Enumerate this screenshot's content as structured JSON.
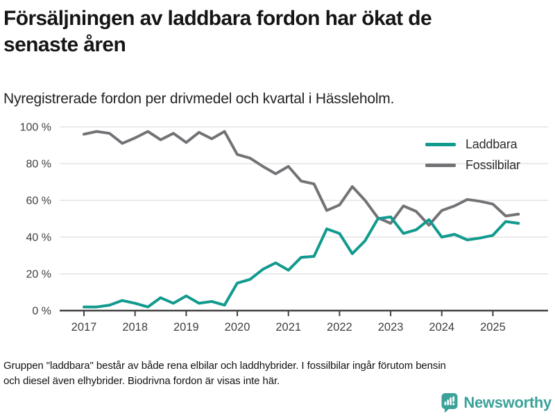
{
  "header": {
    "title_lines": [
      "Försäljningen av laddbara fordon har ökat de",
      "senaste åren"
    ],
    "subtitle": "Nyregistrerade fordon per drivmedel och kvartal i Hässleholm."
  },
  "chart_data": {
    "type": "line",
    "title": "Nyregistrerade fordon per drivmedel och kvartal i Hässleholm",
    "x_unit": "kvartal",
    "categories": [
      "2017 K1",
      "2017 K2",
      "2017 K3",
      "2017 K4",
      "2018 K1",
      "2018 K2",
      "2018 K3",
      "2018 K4",
      "2019 K1",
      "2019 K2",
      "2019 K3",
      "2019 K4",
      "2020 K1",
      "2020 K2",
      "2020 K3",
      "2020 K4",
      "2021 K1",
      "2021 K2",
      "2021 K3",
      "2021 K4",
      "2022 K1",
      "2022 K2",
      "2022 K3",
      "2022 K4",
      "2023 K1",
      "2023 K2",
      "2023 K3",
      "2023 K4",
      "2024 K1",
      "2024 K2",
      "2024 K3",
      "2024 K4",
      "2025 K1",
      "2025 K2",
      "2025 K3"
    ],
    "series": [
      {
        "name": "Laddbara",
        "color": "#119a8e",
        "values": [
          2,
          2,
          3,
          5.5,
          4,
          2,
          7,
          4,
          8,
          4,
          5,
          3,
          15,
          17,
          22.5,
          26,
          22,
          29,
          29.5,
          44.5,
          42,
          31,
          38,
          50,
          51,
          42,
          44,
          49.5,
          40,
          41.5,
          38.5,
          39.5,
          41,
          48.5,
          47.5
        ]
      },
      {
        "name": "Fossilbilar",
        "color": "#737377",
        "values": [
          96,
          97.5,
          96.5,
          91,
          94,
          97.5,
          93,
          96.5,
          91.5,
          97,
          93.5,
          97.5,
          85,
          83,
          78.5,
          74.5,
          78.5,
          70.5,
          69,
          54.5,
          57.5,
          67.5,
          60,
          50.5,
          47.5,
          57,
          54,
          46.5,
          54.5,
          57,
          60.5,
          59.5,
          58,
          51.5,
          52.5
        ]
      }
    ],
    "xticks": [
      "2017",
      "2018",
      "2019",
      "2020",
      "2021",
      "2022",
      "2023",
      "2024",
      "2025"
    ],
    "yticks": [
      {
        "value": 0,
        "label": "0 %"
      },
      {
        "value": 20,
        "label": "20 %"
      },
      {
        "value": 40,
        "label": "40 %"
      },
      {
        "value": 60,
        "label": "60 %"
      },
      {
        "value": 80,
        "label": "80 %"
      },
      {
        "value": 100,
        "label": "100 %"
      }
    ],
    "ylim": [
      0,
      100
    ],
    "grid": "horizontal",
    "legend_position": "top-right"
  },
  "legend": {
    "items": [
      {
        "label": "Laddbara",
        "color": "#119a8e"
      },
      {
        "label": "Fossilbilar",
        "color": "#737377"
      }
    ]
  },
  "footer": {
    "lines": [
      "Gruppen \"laddbara\" består av både rena elbilar och laddhybrider. I fossilbilar ingår förutom bensin",
      "och diesel även elhybrider. Biodrivna fordon är visas inte här."
    ]
  },
  "logo": {
    "text": "Newsworthy",
    "color": "#3ba29a",
    "icon": "newsworthy-chart-bubble-icon"
  },
  "style": {
    "grid_color": "#e3e3e3",
    "axis_color": "#414141",
    "tick_label_color": "#3f3f3f"
  }
}
